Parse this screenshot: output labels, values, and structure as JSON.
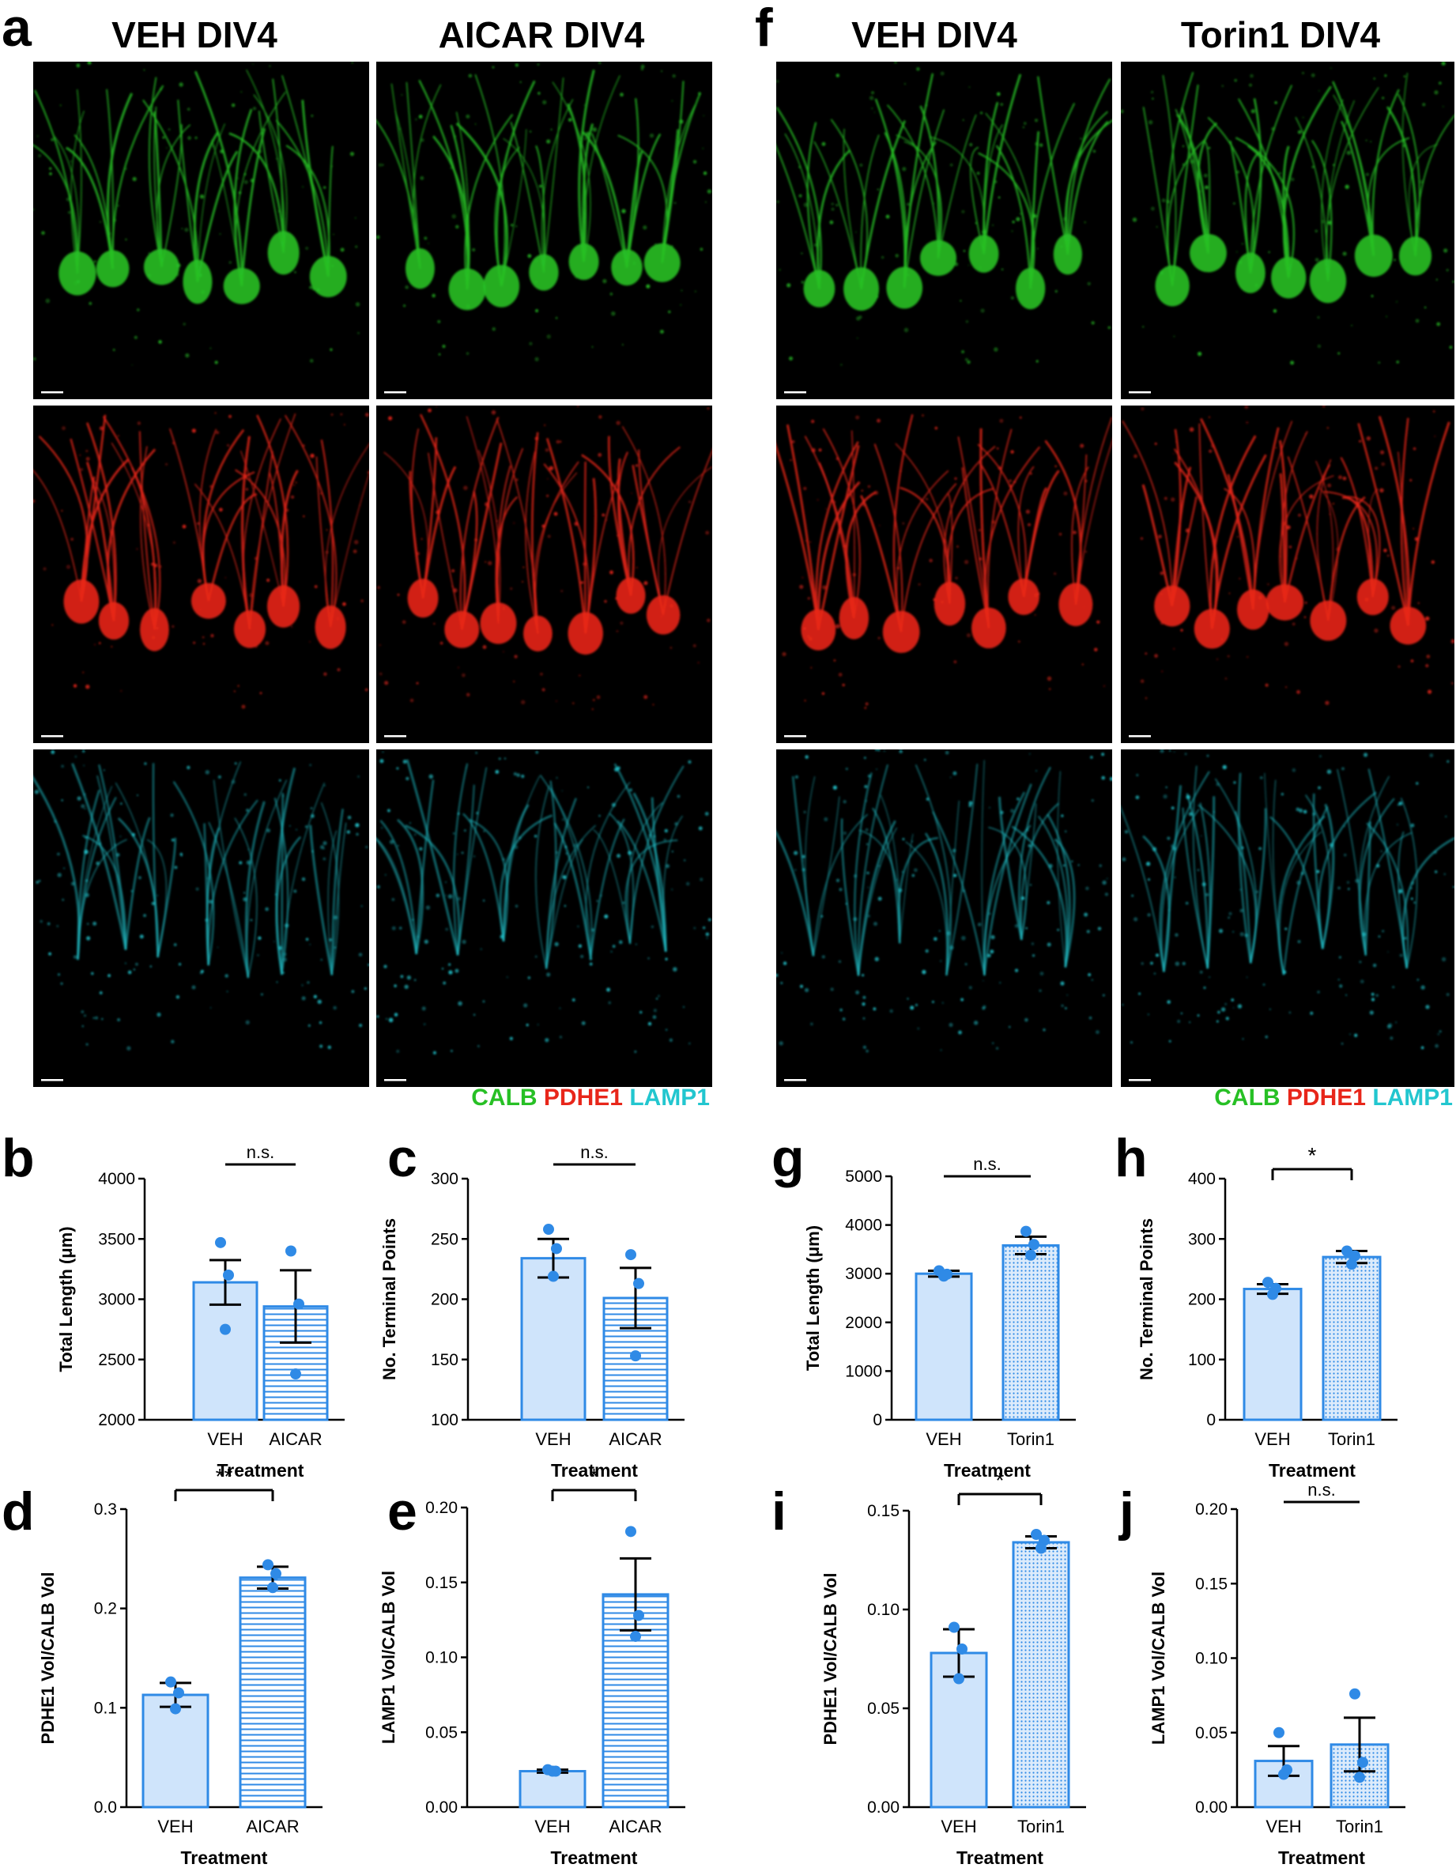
{
  "panel_letters": {
    "a": "a",
    "f": "f",
    "b": "b",
    "c": "c",
    "g": "g",
    "h": "h",
    "d": "d",
    "e": "e",
    "i": "i",
    "j": "j"
  },
  "column_titles": {
    "veh_a": "VEH DIV4",
    "aicar": "AICAR DIV4",
    "veh_f": "VEH DIV4",
    "torin": "Torin1 DIV4"
  },
  "channel_legend": {
    "calb": "CALB",
    "pdhe1": "PDHE1",
    "lamp1": "LAMP1"
  },
  "colors": {
    "calb": "#27c025",
    "pdhe1": "#e8261a",
    "lamp1": "#22c6cf",
    "bar_stroke": "#2f8ae6",
    "bar_fill": "#cfe4fb",
    "dot": "#2f8ae6"
  },
  "microscopy_images": [
    {
      "channel": "calb",
      "condition": "VEH DIV4",
      "panel": "a"
    },
    {
      "channel": "calb",
      "condition": "AICAR DIV4",
      "panel": "a"
    },
    {
      "channel": "pdhe1",
      "condition": "VEH DIV4",
      "panel": "a"
    },
    {
      "channel": "pdhe1",
      "condition": "AICAR DIV4",
      "panel": "a"
    },
    {
      "channel": "lamp1",
      "condition": "VEH DIV4",
      "panel": "a"
    },
    {
      "channel": "lamp1",
      "condition": "AICAR DIV4",
      "panel": "a"
    },
    {
      "channel": "calb",
      "condition": "VEH DIV4",
      "panel": "f"
    },
    {
      "channel": "calb",
      "condition": "Torin1 DIV4",
      "panel": "f"
    },
    {
      "channel": "pdhe1",
      "condition": "VEH DIV4",
      "panel": "f"
    },
    {
      "channel": "pdhe1",
      "condition": "Torin1 DIV4",
      "panel": "f"
    },
    {
      "channel": "lamp1",
      "condition": "VEH DIV4",
      "panel": "f"
    },
    {
      "channel": "lamp1",
      "condition": "Torin1 DIV4",
      "panel": "f"
    }
  ],
  "chart_data": [
    {
      "panel": "b",
      "type": "bar",
      "categories": [
        "VEH",
        "AICAR"
      ],
      "values": [
        3140,
        2940
      ],
      "error": [
        185,
        300
      ],
      "points": [
        [
          3470,
          3200,
          2750
        ],
        [
          3400,
          2960,
          2380
        ]
      ],
      "ylim": [
        2000,
        4000
      ],
      "yticks": [
        "2000",
        "2500",
        "3000",
        "3500",
        "4000"
      ],
      "ylabel": "Total Length (μm)",
      "xlabel": "Treatment",
      "significance": "n.s.",
      "pattern": [
        "solid",
        "hlines"
      ]
    },
    {
      "panel": "c",
      "type": "bar",
      "categories": [
        "VEH",
        "AICAR"
      ],
      "values": [
        234,
        201
      ],
      "error": [
        16,
        25
      ],
      "points": [
        [
          258,
          242,
          219
        ],
        [
          237,
          213,
          153
        ]
      ],
      "ylim": [
        100,
        300
      ],
      "yticks": [
        "100",
        "150",
        "200",
        "250",
        "300"
      ],
      "ylabel": "No. Terminal Points",
      "xlabel": "Treatment",
      "significance": "n.s.",
      "pattern": [
        "solid",
        "hlines"
      ]
    },
    {
      "panel": "g",
      "type": "bar",
      "categories": [
        "VEH",
        "Torin1"
      ],
      "values": [
        3000,
        3580
      ],
      "error": [
        60,
        180
      ],
      "points": [
        [
          3060,
          2990,
          2950
        ],
        [
          3870,
          3600,
          3380
        ]
      ],
      "ylim": [
        0,
        5000
      ],
      "yticks": [
        "0",
        "1000",
        "2000",
        "3000",
        "4000",
        "5000"
      ],
      "ylabel": "Total Length (μm)",
      "xlabel": "Treatment",
      "significance": "n.s.",
      "pattern": [
        "solid",
        "dots"
      ]
    },
    {
      "panel": "h",
      "type": "bar",
      "categories": [
        "VEH",
        "Torin1"
      ],
      "values": [
        217,
        270
      ],
      "error": [
        8,
        10
      ],
      "points": [
        [
          228,
          218,
          208
        ],
        [
          280,
          272,
          258
        ]
      ],
      "ylim": [
        0,
        400
      ],
      "yticks": [
        "0",
        "100",
        "200",
        "300",
        "400"
      ],
      "ylabel": "No. Terminal Points",
      "xlabel": "Treatment",
      "significance": "*",
      "pattern": [
        "solid",
        "dots"
      ]
    },
    {
      "panel": "d",
      "type": "bar",
      "categories": [
        "VEH",
        "AICAR"
      ],
      "values": [
        0.113,
        0.231
      ],
      "error": [
        0.012,
        0.011
      ],
      "points": [
        [
          0.126,
          0.115,
          0.099
        ],
        [
          0.244,
          0.235,
          0.221
        ]
      ],
      "ylim": [
        0,
        0.3
      ],
      "yticks": [
        "0.0",
        "0.1",
        "0.2",
        "0.3"
      ],
      "ylabel": "PDHE1 Vol/CALB Vol",
      "xlabel": "Treatment",
      "significance": "**",
      "pattern": [
        "solid",
        "hlines"
      ]
    },
    {
      "panel": "e",
      "type": "bar",
      "categories": [
        "VEH",
        "AICAR"
      ],
      "values": [
        0.024,
        0.142
      ],
      "error": [
        0.001,
        0.024
      ],
      "points": [
        [
          0.025,
          0.024,
          0.024
        ],
        [
          0.184,
          0.128,
          0.114
        ]
      ],
      "ylim": [
        0,
        0.2
      ],
      "yticks": [
        "0.00",
        "0.05",
        "0.10",
        "0.15",
        "0.20"
      ],
      "ylabel": "LAMP1 Vol/CALB Vol",
      "xlabel": "Treatment",
      "significance": "*",
      "pattern": [
        "solid",
        "hlines"
      ]
    },
    {
      "panel": "i",
      "type": "bar",
      "categories": [
        "VEH",
        "Torin1"
      ],
      "values": [
        0.078,
        0.134
      ],
      "error": [
        0.012,
        0.003
      ],
      "points": [
        [
          0.091,
          0.08,
          0.065
        ],
        [
          0.138,
          0.135,
          0.131
        ]
      ],
      "ylim": [
        0,
        0.15
      ],
      "yticks": [
        "0.00",
        "0.05",
        "0.10",
        "0.15"
      ],
      "ylabel": "PDHE1 Vol/CALB Vol",
      "xlabel": "Treatment",
      "significance": "*",
      "pattern": [
        "solid",
        "dots"
      ]
    },
    {
      "panel": "j",
      "type": "bar",
      "categories": [
        "VEH",
        "Torin1"
      ],
      "values": [
        0.031,
        0.042
      ],
      "error": [
        0.01,
        0.018
      ],
      "points": [
        [
          0.05,
          0.025,
          0.022
        ],
        [
          0.076,
          0.03,
          0.02
        ]
      ],
      "ylim": [
        0,
        0.2
      ],
      "yticks": [
        "0.00",
        "0.05",
        "0.10",
        "0.15",
        "0.20"
      ],
      "ylabel": "LAMP1 Vol/CALB Vol",
      "xlabel": "Treatment",
      "significance": "n.s.",
      "pattern": [
        "solid",
        "dots"
      ]
    }
  ]
}
